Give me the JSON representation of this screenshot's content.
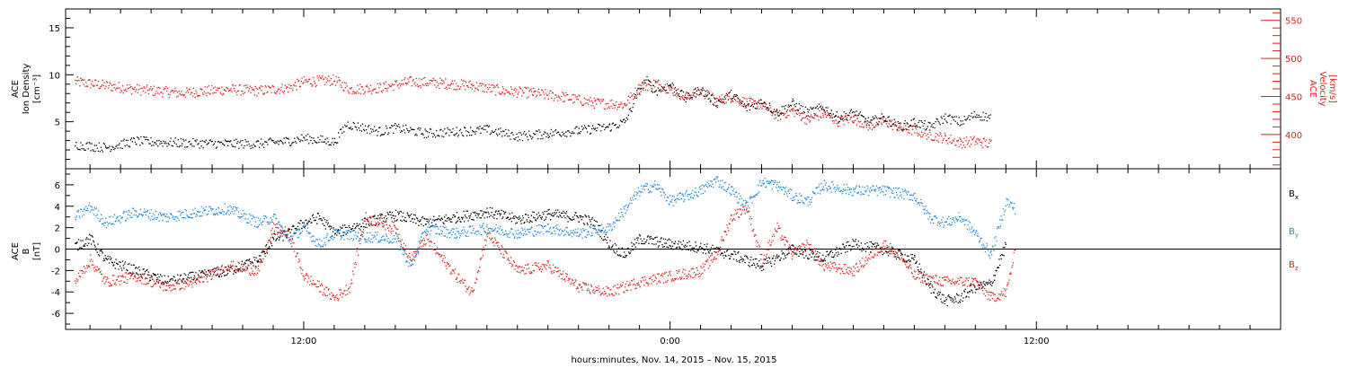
{
  "chart_data": [
    {
      "type": "scatter",
      "title": "",
      "xlabel": "",
      "x_tick_labels": [
        "12:00",
        "0:00",
        "12:00"
      ],
      "x_tick_hours": [
        12,
        24,
        36
      ],
      "xlim_hours": [
        4.2,
        44.0
      ],
      "ylabel_left": [
        "ACE",
        "Ion Density",
        "[cm⁻³]"
      ],
      "ylim_left": [
        0,
        17
      ],
      "yticks_left": [
        5,
        10,
        15
      ],
      "ylabel_right": [
        "ACE",
        "Velocity",
        "[km/s]"
      ],
      "ylim_right": [
        355,
        565
      ],
      "yticks_right": [
        400,
        450,
        500,
        550
      ],
      "series": [
        {
          "key": "density",
          "axis": "left",
          "color": "#000000",
          "points": [
            [
              4.5,
              2.6
            ],
            [
              5.5,
              2.3
            ],
            [
              6.5,
              3.0
            ],
            [
              7.0,
              2.9
            ],
            [
              8.0,
              2.8
            ],
            [
              9.5,
              2.7
            ],
            [
              10.5,
              2.7
            ],
            [
              11.5,
              3.0
            ],
            [
              12.0,
              3.3
            ],
            [
              13.0,
              2.9
            ],
            [
              13.4,
              4.8
            ],
            [
              14.5,
              4.0
            ],
            [
              15.0,
              4.4
            ],
            [
              16.0,
              3.8
            ],
            [
              17.0,
              4.0
            ],
            [
              18.0,
              4.2
            ],
            [
              19.0,
              3.5
            ],
            [
              20.0,
              3.8
            ],
            [
              21.0,
              4.1
            ],
            [
              22.0,
              4.5
            ],
            [
              22.5,
              5.0
            ],
            [
              22.7,
              6.3
            ],
            [
              22.9,
              8.0
            ],
            [
              23.2,
              9.5
            ],
            [
              23.5,
              8.3
            ],
            [
              24.0,
              9.0
            ],
            [
              24.5,
              7.5
            ],
            [
              25.0,
              8.5
            ],
            [
              25.5,
              7.0
            ],
            [
              26.0,
              8.0
            ],
            [
              26.5,
              6.5
            ],
            [
              27.0,
              7.2
            ],
            [
              27.5,
              6.0
            ],
            [
              28.0,
              7.0
            ],
            [
              28.5,
              6.0
            ],
            [
              29.0,
              6.6
            ],
            [
              29.5,
              5.5
            ],
            [
              30.0,
              6.0
            ],
            [
              30.5,
              5.0
            ],
            [
              31.0,
              5.5
            ],
            [
              31.5,
              4.5
            ],
            [
              32.0,
              5.0
            ],
            [
              32.5,
              4.5
            ],
            [
              33.0,
              5.5
            ],
            [
              33.5,
              5.0
            ],
            [
              34.0,
              5.8
            ],
            [
              34.5,
              5.5
            ]
          ]
        },
        {
          "key": "velocity",
          "axis": "right",
          "color": "#e0201a",
          "points": [
            [
              4.5,
              470
            ],
            [
              5.5,
              465
            ],
            [
              6.5,
              460
            ],
            [
              8.0,
              455
            ],
            [
              9.5,
              460
            ],
            [
              10.5,
              458
            ],
            [
              11.5,
              462
            ],
            [
              12.0,
              470
            ],
            [
              13.0,
              472
            ],
            [
              13.5,
              460
            ],
            [
              14.5,
              462
            ],
            [
              15.5,
              470
            ],
            [
              16.5,
              468
            ],
            [
              17.5,
              465
            ],
            [
              18.5,
              458
            ],
            [
              19.5,
              455
            ],
            [
              20.5,
              450
            ],
            [
              21.5,
              442
            ],
            [
              22.5,
              440
            ],
            [
              23.0,
              463
            ],
            [
              23.5,
              468
            ],
            [
              24.0,
              460
            ],
            [
              24.5,
              450
            ],
            [
              25.0,
              458
            ],
            [
              25.5,
              445
            ],
            [
              26.0,
              450
            ],
            [
              26.5,
              442
            ],
            [
              27.0,
              440
            ],
            [
              27.5,
              425
            ],
            [
              28.0,
              432
            ],
            [
              28.5,
              420
            ],
            [
              29.0,
              428
            ],
            [
              29.5,
              418
            ],
            [
              30.0,
              422
            ],
            [
              30.5,
              412
            ],
            [
              31.0,
              418
            ],
            [
              31.5,
              410
            ],
            [
              32.0,
              406
            ],
            [
              32.5,
              400
            ],
            [
              33.0,
              396
            ],
            [
              33.5,
              390
            ],
            [
              34.0,
              392
            ],
            [
              34.5,
              388
            ]
          ]
        }
      ]
    },
    {
      "type": "scatter",
      "title": "",
      "xlabel": "hours:minutes, Nov. 14, 2015 – Nov. 15, 2015",
      "x_tick_labels": [
        "12:00",
        "0:00",
        "12:00"
      ],
      "x_tick_hours": [
        12,
        24,
        36
      ],
      "xlim_hours": [
        4.2,
        44.0
      ],
      "ylabel_left": [
        "ACE",
        "B",
        "[nT]"
      ],
      "ylim_left": [
        -7.5,
        7.5
      ],
      "yticks_left": [
        -6,
        -4,
        -2,
        0,
        2,
        4,
        6
      ],
      "zero_line": true,
      "legend_position": "right",
      "series": [
        {
          "key": "bx",
          "name": "B",
          "subscript": "x",
          "color": "#000000",
          "points": [
            [
              4.5,
              0.3
            ],
            [
              5.0,
              1.0
            ],
            [
              5.5,
              -1.0
            ],
            [
              6.5,
              -2.0
            ],
            [
              7.5,
              -3.0
            ],
            [
              8.5,
              -2.5
            ],
            [
              9.5,
              -2.0
            ],
            [
              10.5,
              -1.0
            ],
            [
              11.0,
              1.0
            ],
            [
              11.5,
              1.5
            ],
            [
              12.0,
              2.5
            ],
            [
              12.5,
              3.0
            ],
            [
              13.0,
              1.5
            ],
            [
              14.0,
              2.5
            ],
            [
              15.0,
              3.2
            ],
            [
              16.0,
              2.5
            ],
            [
              17.0,
              3.0
            ],
            [
              18.0,
              3.5
            ],
            [
              19.0,
              2.8
            ],
            [
              20.0,
              3.3
            ],
            [
              21.0,
              3.0
            ],
            [
              21.5,
              2.5
            ],
            [
              22.0,
              0.5
            ],
            [
              22.5,
              -0.5
            ],
            [
              23.0,
              1.0
            ],
            [
              24.0,
              0.5
            ],
            [
              25.0,
              0.2
            ],
            [
              26.0,
              -0.5
            ],
            [
              27.0,
              -1.5
            ],
            [
              28.0,
              0.0
            ],
            [
              29.0,
              -0.8
            ],
            [
              30.0,
              0.5
            ],
            [
              31.0,
              0.0
            ],
            [
              32.0,
              -1.0
            ],
            [
              32.5,
              -3.5
            ],
            [
              33.0,
              -4.8
            ],
            [
              33.5,
              -4.5
            ],
            [
              34.0,
              -3.5
            ],
            [
              34.5,
              -3.2
            ],
            [
              35.0,
              0.5
            ]
          ]
        },
        {
          "key": "by",
          "name": "B",
          "subscript": "y",
          "color": "#1f8ae0",
          "points": [
            [
              4.5,
              3.0
            ],
            [
              5.0,
              4.0
            ],
            [
              5.5,
              2.5
            ],
            [
              6.5,
              3.5
            ],
            [
              7.5,
              3.0
            ],
            [
              8.5,
              3.5
            ],
            [
              9.5,
              3.8
            ],
            [
              10.5,
              2.5
            ],
            [
              11.0,
              3.0
            ],
            [
              11.5,
              1.0
            ],
            [
              12.0,
              2.0
            ],
            [
              12.5,
              0.5
            ],
            [
              13.0,
              1.5
            ],
            [
              14.0,
              1.2
            ],
            [
              15.0,
              1.0
            ],
            [
              15.5,
              -1.5
            ],
            [
              16.0,
              2.0
            ],
            [
              17.0,
              1.5
            ],
            [
              18.0,
              2.0
            ],
            [
              19.0,
              1.5
            ],
            [
              20.0,
              2.0
            ],
            [
              21.0,
              1.5
            ],
            [
              22.0,
              2.0
            ],
            [
              23.0,
              5.5
            ],
            [
              23.5,
              6.0
            ],
            [
              24.0,
              4.5
            ],
            [
              25.0,
              5.5
            ],
            [
              25.5,
              6.5
            ],
            [
              26.0,
              5.5
            ],
            [
              26.5,
              4.0
            ],
            [
              27.0,
              6.3
            ],
            [
              27.5,
              6.0
            ],
            [
              28.0,
              5.0
            ],
            [
              28.5,
              4.5
            ],
            [
              29.0,
              6.0
            ],
            [
              30.0,
              5.5
            ],
            [
              31.0,
              5.5
            ],
            [
              32.0,
              5.0
            ],
            [
              32.5,
              3.0
            ],
            [
              33.0,
              2.5
            ],
            [
              33.5,
              3.0
            ],
            [
              34.0,
              1.5
            ],
            [
              34.5,
              -0.5
            ],
            [
              35.0,
              4.5
            ],
            [
              35.3,
              3.8
            ]
          ]
        },
        {
          "key": "bz",
          "name": "B",
          "subscript": "z",
          "color": "#e0201a",
          "points": [
            [
              4.5,
              -3.0
            ],
            [
              5.0,
              -1.0
            ],
            [
              5.5,
              -3.0
            ],
            [
              6.5,
              -2.5
            ],
            [
              7.5,
              -3.5
            ],
            [
              8.5,
              -3.0
            ],
            [
              9.5,
              -1.5
            ],
            [
              10.5,
              -2.0
            ],
            [
              11.0,
              2.0
            ],
            [
              11.5,
              1.5
            ],
            [
              12.0,
              -2.5
            ],
            [
              12.5,
              -3.5
            ],
            [
              13.0,
              -4.5
            ],
            [
              13.5,
              -3.5
            ],
            [
              14.0,
              3.0
            ],
            [
              15.0,
              2.0
            ],
            [
              15.5,
              -1.0
            ],
            [
              16.0,
              1.0
            ],
            [
              17.0,
              -2.5
            ],
            [
              17.5,
              -4.0
            ],
            [
              18.0,
              1.5
            ],
            [
              19.0,
              -2.0
            ],
            [
              20.0,
              -1.5
            ],
            [
              21.0,
              -3.5
            ],
            [
              22.0,
              -4.0
            ],
            [
              23.0,
              -3.0
            ],
            [
              24.0,
              -2.5
            ],
            [
              25.0,
              -2.0
            ],
            [
              25.5,
              -0.5
            ],
            [
              26.0,
              3.0
            ],
            [
              26.5,
              4.0
            ],
            [
              27.0,
              -1.0
            ],
            [
              27.5,
              2.0
            ],
            [
              28.0,
              -0.5
            ],
            [
              28.5,
              0.5
            ],
            [
              29.0,
              -1.5
            ],
            [
              30.0,
              -2.0
            ],
            [
              31.0,
              0.5
            ],
            [
              31.5,
              -0.5
            ],
            [
              32.0,
              -2.5
            ],
            [
              33.0,
              -3.0
            ],
            [
              34.0,
              -3.0
            ],
            [
              34.5,
              -4.5
            ],
            [
              35.0,
              -4.0
            ],
            [
              35.3,
              0.0
            ]
          ]
        }
      ]
    }
  ]
}
